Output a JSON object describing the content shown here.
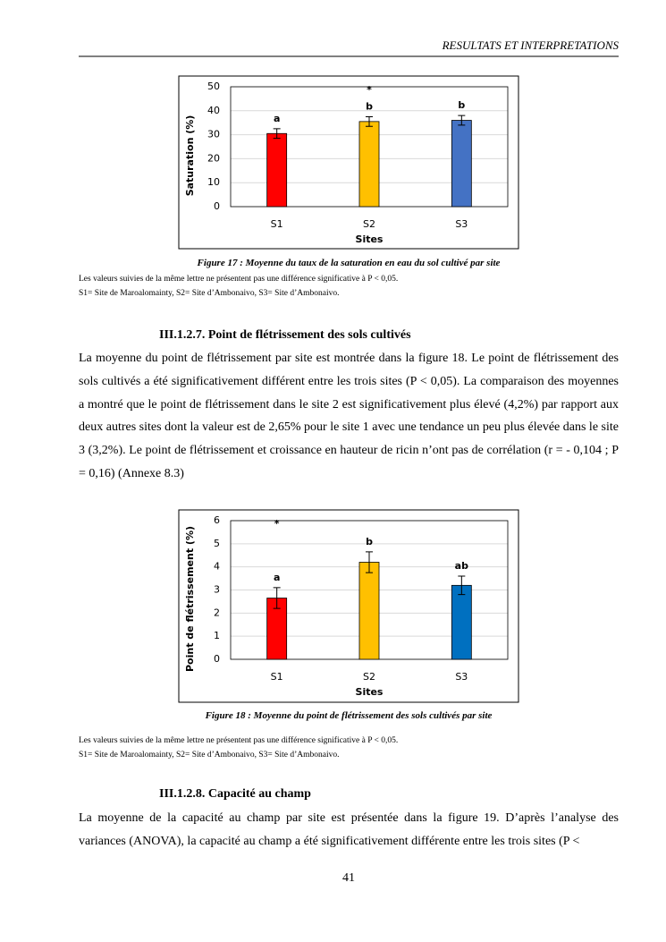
{
  "header": {
    "title": "RESULTATS ET INTERPRETATIONS"
  },
  "chart_data": [
    {
      "type": "bar",
      "y_label": "Saturation (%)",
      "x_label": "Sites",
      "categories": [
        "S1",
        "S2",
        "S3"
      ],
      "values": [
        30.5,
        35.5,
        36
      ],
      "errors": [
        2,
        2,
        2
      ],
      "colors": [
        "#ff0000",
        "#ffc000",
        "#4472c4"
      ],
      "letters": [
        "a",
        "b",
        "b"
      ],
      "star": "*",
      "star_category": 1,
      "ylim": [
        0,
        50
      ],
      "yticks": [
        0,
        10,
        20,
        30,
        40,
        50
      ],
      "grid": true
    },
    {
      "type": "bar",
      "y_label": "Point de flétrissement (%)",
      "x_label": "Sites",
      "categories": [
        "S1",
        "S2",
        "S3"
      ],
      "values": [
        2.65,
        4.2,
        3.2
      ],
      "errors": [
        0.45,
        0.45,
        0.4
      ],
      "colors": [
        "#ff0000",
        "#ffc000",
        "#0070c0"
      ],
      "letters": [
        "a",
        "b",
        "ab"
      ],
      "star": "*",
      "star_category": 0,
      "ylim": [
        0,
        6
      ],
      "yticks": [
        0,
        1,
        2,
        3,
        4,
        5,
        6
      ],
      "grid": true
    }
  ],
  "figure17": {
    "caption": "Figure 17 : Moyenne du taux de la saturation en eau du sol cultivé par site",
    "notes": [
      "Les valeurs suivies de la même lettre ne présentent pas une différence significative à P < 0,05.",
      "S1= Site de Maroalomainty, S2= Site d’Ambonaivo, S3= Site d’Ambonaivo."
    ]
  },
  "section1": {
    "heading": "III.1.2.7. Point de flétrissement des sols cultivés",
    "paragraph": "La moyenne du point de flétrissement par site est montrée dans la figure 18. Le point de flétrissement des sols cultivés a été significativement différent entre les trois sites (P < 0,05). La comparaison des moyennes a montré que le point de flétrissement dans le site 2 est significativement plus élevé (4,2%) par rapport aux deux autres sites dont la valeur est de 2,65% pour le site 1 avec une tendance un peu plus élevée dans le site 3 (3,2%). Le point de flétrissement et croissance en hauteur de ricin n’ont pas de corrélation (r = - 0,104 ; P = 0,16) (Annexe 8.3)"
  },
  "figure18": {
    "caption": "Figure 18 : Moyenne du point de flétrissement des sols cultivés par site",
    "notes": [
      "Les valeurs suivies de la même lettre ne présentent pas une différence significative à P < 0,05.",
      "S1= Site de Maroalomainty, S2= Site d’Ambonaivo, S3= Site d’Ambonaivo."
    ]
  },
  "section2": {
    "heading": "III.1.2.8. Capacité au champ",
    "paragraph": "La moyenne de la capacité au champ par site est présentée dans la figure 19. D’après l’analyse des variances (ANOVA), la capacité au champ a été significativement différente entre les trois sites (P <"
  },
  "page_number": "41"
}
